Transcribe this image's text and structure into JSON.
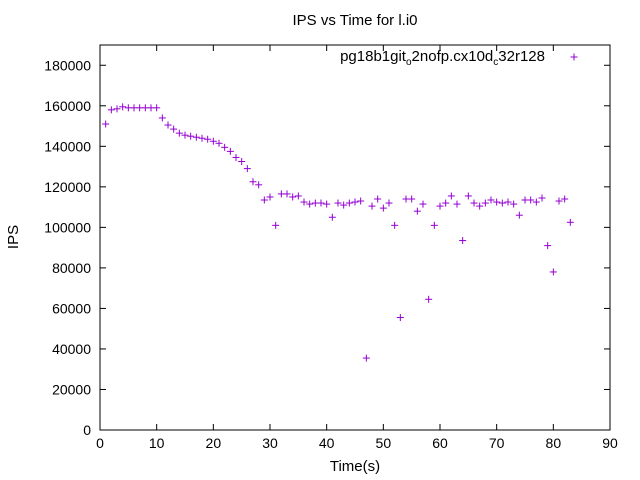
{
  "chart_data": {
    "type": "scatter",
    "title": "IPS vs Time for l.i0",
    "xlabel": "Time(s)",
    "ylabel": "IPS",
    "xlim": [
      0,
      90
    ],
    "ylim": [
      0,
      190000
    ],
    "xticks": [
      0,
      10,
      20,
      30,
      40,
      50,
      60,
      70,
      80,
      90
    ],
    "yticks": [
      0,
      20000,
      40000,
      60000,
      80000,
      100000,
      120000,
      140000,
      160000,
      180000
    ],
    "grid": false,
    "legend_position": "top-right",
    "marker": "+",
    "series": [
      {
        "name": "pg18b1git_o2nofp.cx10d_c32r128",
        "color": "#9400d3",
        "points": [
          [
            1,
            151000
          ],
          [
            2,
            158000
          ],
          [
            3,
            158500
          ],
          [
            4,
            159500
          ],
          [
            5,
            159000
          ],
          [
            6,
            159000
          ],
          [
            7,
            159000
          ],
          [
            8,
            159000
          ],
          [
            9,
            159000
          ],
          [
            10,
            159000
          ],
          [
            11,
            154000
          ],
          [
            12,
            150500
          ],
          [
            13,
            148500
          ],
          [
            14,
            146500
          ],
          [
            15,
            145500
          ],
          [
            16,
            145000
          ],
          [
            17,
            144500
          ],
          [
            18,
            144000
          ],
          [
            19,
            143500
          ],
          [
            20,
            142500
          ],
          [
            21,
            141500
          ],
          [
            22,
            139500
          ],
          [
            23,
            137500
          ],
          [
            24,
            134500
          ],
          [
            25,
            132500
          ],
          [
            26,
            129000
          ],
          [
            27,
            122500
          ],
          [
            28,
            121000
          ],
          [
            29,
            113500
          ],
          [
            30,
            115000
          ],
          [
            31,
            101000
          ],
          [
            32,
            116500
          ],
          [
            33,
            116500
          ],
          [
            34,
            115000
          ],
          [
            35,
            115500
          ],
          [
            36,
            112500
          ],
          [
            37,
            111500
          ],
          [
            38,
            112000
          ],
          [
            39,
            112000
          ],
          [
            40,
            111500
          ],
          [
            41,
            105000
          ],
          [
            42,
            112000
          ],
          [
            43,
            111000
          ],
          [
            44,
            112000
          ],
          [
            45,
            112500
          ],
          [
            46,
            113000
          ],
          [
            47,
            35500
          ],
          [
            48,
            110500
          ],
          [
            49,
            114000
          ],
          [
            50,
            109500
          ],
          [
            51,
            112000
          ],
          [
            52,
            101000
          ],
          [
            53,
            55500
          ],
          [
            54,
            114000
          ],
          [
            55,
            114000
          ],
          [
            56,
            108000
          ],
          [
            57,
            111500
          ],
          [
            58,
            64500
          ],
          [
            59,
            101000
          ],
          [
            60,
            110500
          ],
          [
            61,
            112000
          ],
          [
            62,
            115500
          ],
          [
            63,
            111500
          ],
          [
            64,
            93500
          ],
          [
            65,
            115500
          ],
          [
            66,
            112000
          ],
          [
            67,
            110500
          ],
          [
            68,
            112000
          ],
          [
            69,
            113500
          ],
          [
            70,
            112500
          ],
          [
            71,
            112000
          ],
          [
            72,
            112500
          ],
          [
            73,
            111500
          ],
          [
            74,
            106000
          ],
          [
            75,
            113500
          ],
          [
            76,
            113500
          ],
          [
            77,
            112500
          ],
          [
            78,
            114500
          ],
          [
            79,
            91000
          ],
          [
            80,
            78000
          ],
          [
            81,
            113000
          ],
          [
            82,
            114000
          ],
          [
            83,
            102500
          ]
        ]
      }
    ]
  }
}
